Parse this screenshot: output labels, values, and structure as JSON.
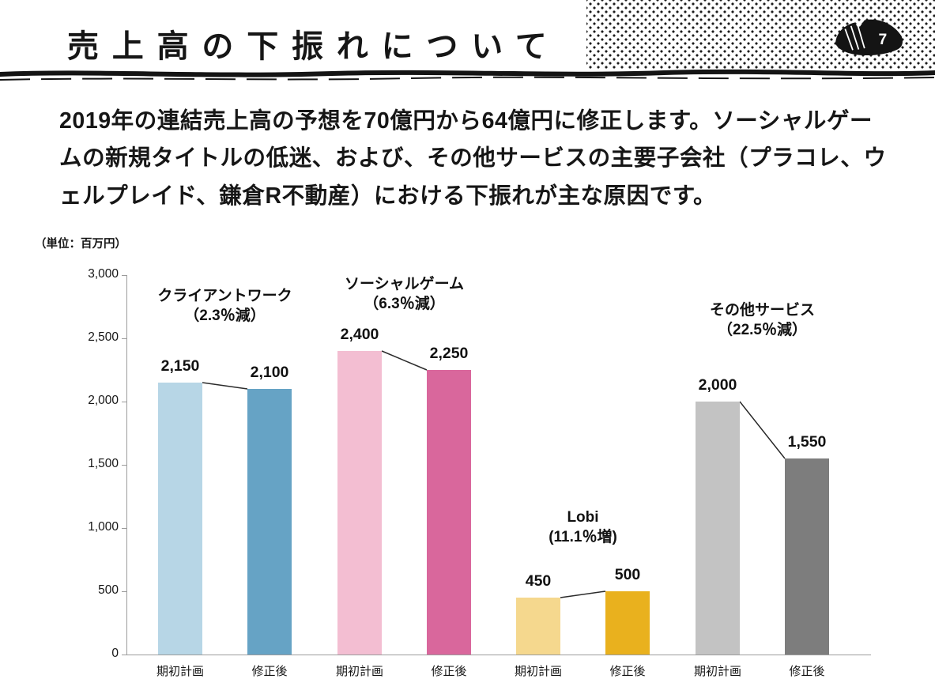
{
  "page": {
    "number": "7"
  },
  "header": {
    "title": "売上高の下振れについて"
  },
  "body": {
    "paragraph": "2019年の連結売上高の予想を70億円から64億円に修正します。ソーシャルゲームの新規タイトルの低迷、および、その他サービスの主要子会社（プラコレ、ウェルプレイド、鎌倉R不動産）における下振れが主な原因です。"
  },
  "chart_data": {
    "type": "bar",
    "title": "",
    "unit_label": "（単位：百万円）",
    "xlabel": "",
    "ylabel": "",
    "ylim": [
      0,
      3000
    ],
    "grid": false,
    "legend": false,
    "yticks": [
      {
        "value": 0,
        "label": "0"
      },
      {
        "value": 500,
        "label": "500"
      },
      {
        "value": 1000,
        "label": "1,000"
      },
      {
        "value": 1500,
        "label": "1,500"
      },
      {
        "value": 2000,
        "label": "2,000"
      },
      {
        "value": 2500,
        "label": "2,500"
      },
      {
        "value": 3000,
        "label": "3,000"
      }
    ],
    "bar_categories": [
      "期初計画",
      "修正後"
    ],
    "groups": [
      {
        "name": "クライアントワーク",
        "annotation_line1": "クライアントワーク",
        "annotation_line2": "（2.3％減）",
        "annotation_gap": 72,
        "bars": [
          {
            "category": "期初計画",
            "value": 2150,
            "label": "2,150",
            "color": "#b7d6e6"
          },
          {
            "category": "修正後",
            "value": 2100,
            "label": "2,100",
            "color": "#66a3c5"
          }
        ]
      },
      {
        "name": "ソーシャルゲーム",
        "annotation_line1": "ソーシャルゲーム",
        "annotation_line2": "（6.3％減）",
        "annotation_gap": 47,
        "bars": [
          {
            "category": "期初計画",
            "value": 2400,
            "label": "2,400",
            "color": "#f3bed2"
          },
          {
            "category": "修正後",
            "value": 2250,
            "label": "2,250",
            "color": "#d9679c"
          }
        ]
      },
      {
        "name": "Lobi",
        "annotation_line1": "Lobi",
        "annotation_line2": "(11.1％増)",
        "annotation_gap": 56,
        "bars": [
          {
            "category": "期初計画",
            "value": 450,
            "label": "450",
            "color": "#f5d88e"
          },
          {
            "category": "修正後",
            "value": 500,
            "label": "500",
            "color": "#e9b11e"
          }
        ]
      },
      {
        "name": "その他サービス",
        "annotation_line1": "その他サービス",
        "annotation_line2": "（22.5％減）",
        "annotation_gap": 78,
        "bars": [
          {
            "category": "期初計画",
            "value": 2000,
            "label": "2,000",
            "color": "#c3c3c3"
          },
          {
            "category": "修正後",
            "value": 1550,
            "label": "1,550",
            "color": "#7d7d7d"
          }
        ]
      }
    ]
  }
}
